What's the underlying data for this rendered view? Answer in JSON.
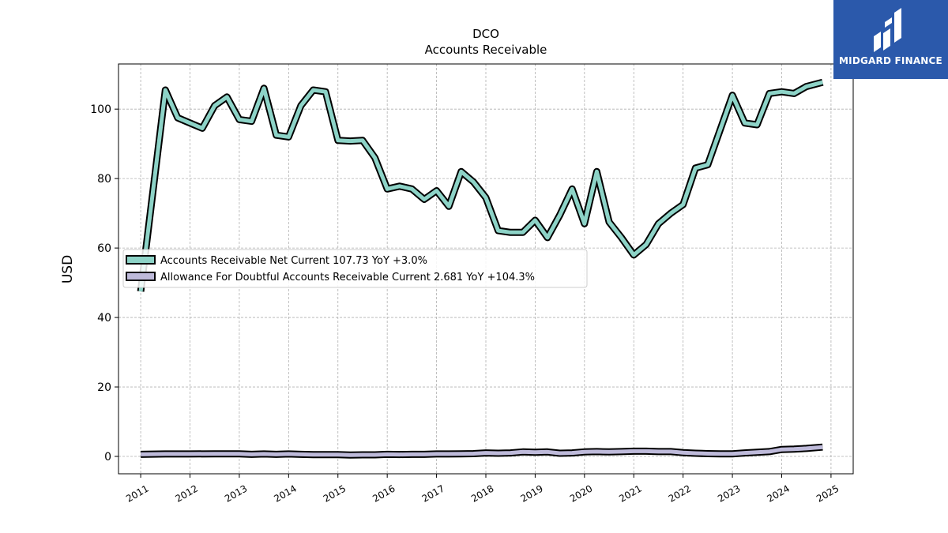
{
  "brand": {
    "name": "MIDGARD FINANCE",
    "color": "#2b59ab"
  },
  "chart_data": {
    "type": "line",
    "title": "DCO",
    "subtitle": "Accounts Receivable",
    "xlabel": "",
    "ylabel": "USD",
    "xlim": [
      2010.55,
      2025.45
    ],
    "ylim": [
      -5,
      113
    ],
    "x_ticks": [
      "2011",
      "2012",
      "2013",
      "2014",
      "2015",
      "2016",
      "2017",
      "2018",
      "2019",
      "2020",
      "2021",
      "2022",
      "2023",
      "2024",
      "2025"
    ],
    "y_ticks": [
      0,
      20,
      40,
      60,
      80,
      100
    ],
    "grid": true,
    "legend_position": "center-left",
    "series": [
      {
        "name": "Accounts Receivable Net Current",
        "legend_label": "Accounts Receivable Net Current  107.73 YoY +3.0%",
        "color": "#8dd3c7",
        "x": [
          2011.0,
          2011.5,
          2011.75,
          2012.0,
          2012.25,
          2012.5,
          2012.75,
          2013.0,
          2013.25,
          2013.5,
          2013.75,
          2014.0,
          2014.25,
          2014.5,
          2014.75,
          2015.0,
          2015.25,
          2015.5,
          2015.75,
          2016.0,
          2016.25,
          2016.5,
          2016.75,
          2017.0,
          2017.25,
          2017.5,
          2017.75,
          2018.0,
          2018.25,
          2018.5,
          2018.75,
          2019.0,
          2019.25,
          2019.5,
          2019.75,
          2020.0,
          2020.25,
          2020.5,
          2020.75,
          2021.0,
          2021.25,
          2021.5,
          2021.75,
          2022.0,
          2022.25,
          2022.5,
          2022.75,
          2023.0,
          2023.25,
          2023.5,
          2023.75,
          2024.0,
          2024.25,
          2024.5,
          2024.83
        ],
        "values": [
          47.5,
          105.5,
          97.5,
          96.0,
          94.5,
          101.0,
          103.5,
          97.0,
          96.5,
          106.0,
          92.5,
          92.0,
          101.0,
          105.5,
          105.0,
          91.0,
          90.8,
          91.0,
          86.0,
          77.0,
          77.8,
          77.0,
          74.0,
          76.5,
          72.0,
          82.0,
          79.0,
          74.5,
          65.0,
          64.5,
          64.5,
          68.0,
          63.0,
          69.5,
          77.0,
          67.0,
          82.0,
          67.5,
          63.0,
          58.0,
          61.0,
          67.0,
          70.0,
          72.5,
          83.0,
          84.0,
          94.0,
          104.0,
          96.0,
          95.5,
          104.5,
          105.0,
          104.5,
          106.5,
          107.73
        ]
      },
      {
        "name": "Allowance For Doubtful Accounts Receivable Current",
        "legend_label": "Allowance For Doubtful Accounts Receivable Current  2.681 YoY +104.3%",
        "color": "#bebada",
        "x": [
          2011.0,
          2011.5,
          2012.0,
          2012.5,
          2013.0,
          2013.25,
          2013.5,
          2013.75,
          2014.0,
          2014.25,
          2014.5,
          2014.75,
          2015.0,
          2015.25,
          2015.5,
          2015.75,
          2016.0,
          2016.25,
          2016.5,
          2016.75,
          2017.0,
          2017.25,
          2017.5,
          2017.75,
          2018.0,
          2018.25,
          2018.5,
          2018.75,
          2019.0,
          2019.25,
          2019.5,
          2019.75,
          2020.0,
          2020.25,
          2020.5,
          2020.75,
          2021.0,
          2021.25,
          2021.5,
          2021.75,
          2022.0,
          2022.25,
          2022.5,
          2022.75,
          2023.0,
          2023.25,
          2023.5,
          2023.75,
          2024.0,
          2024.25,
          2024.5,
          2024.83
        ],
        "values": [
          0.6,
          0.7,
          0.7,
          0.75,
          0.75,
          0.6,
          0.7,
          0.6,
          0.7,
          0.6,
          0.5,
          0.5,
          0.5,
          0.4,
          0.45,
          0.45,
          0.6,
          0.55,
          0.6,
          0.6,
          0.7,
          0.7,
          0.75,
          0.8,
          1.0,
          0.9,
          1.0,
          1.3,
          1.2,
          1.3,
          0.9,
          1.0,
          1.3,
          1.4,
          1.3,
          1.4,
          1.5,
          1.5,
          1.4,
          1.4,
          1.1,
          0.9,
          0.8,
          0.75,
          0.75,
          1.0,
          1.2,
          1.4,
          2.0,
          2.1,
          2.3,
          2.681
        ]
      }
    ]
  }
}
